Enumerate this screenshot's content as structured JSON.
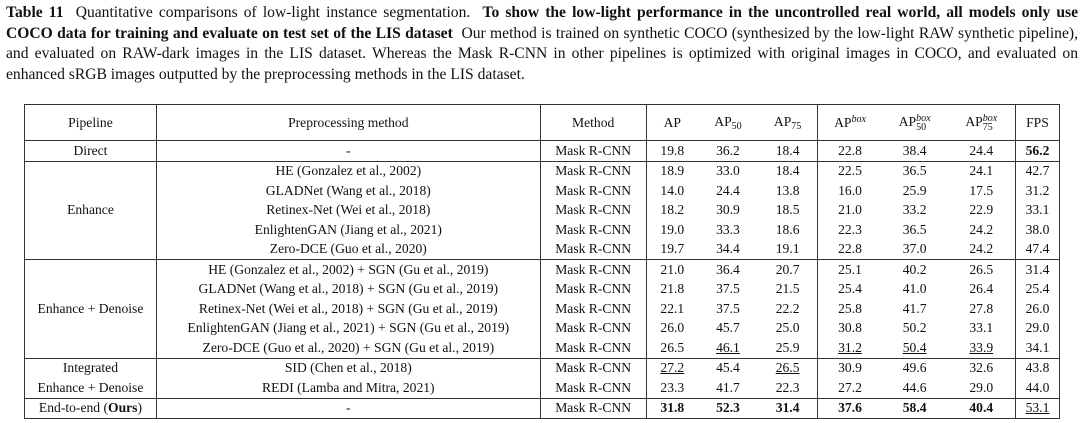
{
  "caption": {
    "label": "Table 11",
    "text1": "Quantitative comparisons of low-light instance segmentation.",
    "bold": "To show the low-light performance in the uncontrolled real world, all models only use COCO data for training and evaluate on test set of the LIS dataset",
    "text2": "Our method is trained on synthetic COCO (synthesized by the low-light RAW synthetic pipeline), and evaluated on RAW-dark images in the LIS dataset. Whereas the Mask R-CNN in other pipelines is optimized with original images in COCO, and evaluated on enhanced sRGB images outputted by the preprocessing methods in the LIS dataset."
  },
  "header": {
    "pipeline": "Pipeline",
    "preprocessing": "Preprocessing method",
    "method": "Method",
    "ap": "AP",
    "ap50_base": "AP",
    "ap50_sub": "50",
    "ap75_base": "AP",
    "ap75_sub": "75",
    "apbox_base": "AP",
    "apbox_sup": "box",
    "apbox50_base": "AP",
    "apbox50_sup": "box",
    "apbox50_sub": "50",
    "apbox75_base": "AP",
    "apbox75_sup": "box",
    "apbox75_sub": "75",
    "fps": "FPS"
  },
  "groups": {
    "direct": "Direct",
    "enhance": "Enhance",
    "enhance_denoise": "Enhance + Denoise",
    "integrated_1": "Integrated",
    "integrated_2": "Enhance + Denoise",
    "ours_prefix": "End-to-end (",
    "ours_bold": "Ours",
    "ours_suffix": ")"
  },
  "rows": [
    {
      "pre": "-",
      "method": "Mask R-CNN",
      "ap": "19.8",
      "ap50": "36.2",
      "ap75": "18.4",
      "apb": "22.8",
      "apb50": "38.4",
      "apb75": "24.4",
      "fps": "56.2"
    },
    {
      "pre": "HE (Gonzalez et al., 2002)",
      "method": "Mask R-CNN",
      "ap": "18.9",
      "ap50": "33.0",
      "ap75": "18.4",
      "apb": "22.5",
      "apb50": "36.5",
      "apb75": "24.1",
      "fps": "42.7"
    },
    {
      "pre": "GLADNet (Wang et al., 2018)",
      "method": "Mask R-CNN",
      "ap": "14.0",
      "ap50": "24.4",
      "ap75": "13.8",
      "apb": "16.0",
      "apb50": "25.9",
      "apb75": "17.5",
      "fps": "31.2"
    },
    {
      "pre": "Retinex-Net (Wei et al., 2018)",
      "method": "Mask R-CNN",
      "ap": "18.2",
      "ap50": "30.9",
      "ap75": "18.5",
      "apb": "21.0",
      "apb50": "33.2",
      "apb75": "22.9",
      "fps": "33.1"
    },
    {
      "pre": "EnlightenGAN (Jiang et al., 2021)",
      "method": "Mask R-CNN",
      "ap": "19.0",
      "ap50": "33.3",
      "ap75": "18.6",
      "apb": "22.3",
      "apb50": "36.5",
      "apb75": "24.2",
      "fps": "38.0"
    },
    {
      "pre": "Zero-DCE (Guo et al., 2020)",
      "method": "Mask R-CNN",
      "ap": "19.7",
      "ap50": "34.4",
      "ap75": "19.1",
      "apb": "22.8",
      "apb50": "37.0",
      "apb75": "24.2",
      "fps": "47.4"
    },
    {
      "pre": "HE (Gonzalez et al., 2002) + SGN (Gu et al., 2019)",
      "method": "Mask R-CNN",
      "ap": "21.0",
      "ap50": "36.4",
      "ap75": "20.7",
      "apb": "25.1",
      "apb50": "40.2",
      "apb75": "26.5",
      "fps": "31.4"
    },
    {
      "pre": "GLADNet (Wang et al., 2018) + SGN (Gu et al., 2019)",
      "method": "Mask R-CNN",
      "ap": "21.8",
      "ap50": "37.5",
      "ap75": "21.5",
      "apb": "25.4",
      "apb50": "41.0",
      "apb75": "26.4",
      "fps": "25.4"
    },
    {
      "pre": "Retinex-Net (Wei et al., 2018) + SGN (Gu et al., 2019)",
      "method": "Mask R-CNN",
      "ap": "22.1",
      "ap50": "37.5",
      "ap75": "22.2",
      "apb": "25.8",
      "apb50": "41.7",
      "apb75": "27.8",
      "fps": "26.0"
    },
    {
      "pre": "EnlightenGAN (Jiang et al., 2021) + SGN (Gu et al., 2019)",
      "method": "Mask R-CNN",
      "ap": "26.0",
      "ap50": "45.7",
      "ap75": "25.0",
      "apb": "30.8",
      "apb50": "50.2",
      "apb75": "33.1",
      "fps": "29.0"
    },
    {
      "pre": "Zero-DCE (Guo et al., 2020) + SGN (Gu et al., 2019)",
      "method": "Mask R-CNN",
      "ap": "26.5",
      "ap50": "46.1",
      "ap75": "25.9",
      "apb": "31.2",
      "apb50": "50.4",
      "apb75": "33.9",
      "fps": "34.1"
    },
    {
      "pre": "SID (Chen et al., 2018)",
      "method": "Mask R-CNN",
      "ap": "27.2",
      "ap50": "45.4",
      "ap75": "26.5",
      "apb": "30.9",
      "apb50": "49.6",
      "apb75": "32.6",
      "fps": "43.8"
    },
    {
      "pre": "REDI (Lamba and Mitra, 2021)",
      "method": "Mask R-CNN",
      "ap": "23.3",
      "ap50": "41.7",
      "ap75": "22.3",
      "apb": "27.2",
      "apb50": "44.6",
      "apb75": "29.0",
      "fps": "44.0"
    },
    {
      "pre": "-",
      "method": "Mask R-CNN",
      "ap": "31.8",
      "ap50": "52.3",
      "ap75": "31.4",
      "apb": "37.6",
      "apb50": "58.4",
      "apb75": "40.4",
      "fps": "53.1"
    }
  ]
}
